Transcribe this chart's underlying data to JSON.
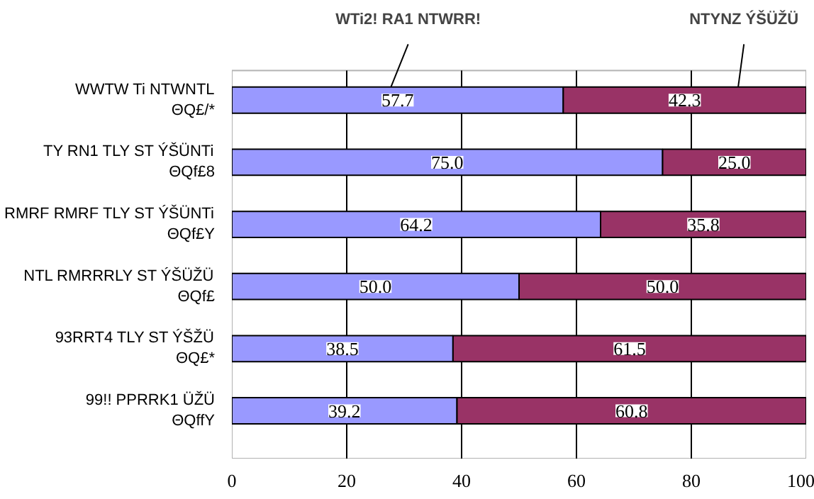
{
  "chart_data": {
    "type": "bar",
    "orientation": "horizontal",
    "stacked": true,
    "categories": [
      "WWTW Ti NTWNTL\nΘQ£/*",
      "TY RN1 TLY ST ÝŠÜNTi\nΘQf£8",
      "RMRF RMRF TLY ST ÝŠÜNTi\nΘQf£Y",
      "NTL RMRRRLY ST ÝŠÜŽÜ\nΘQf£",
      "93RRT4 TLY ST ÝŠŽÜ\nΘQ£*",
      "99!! PPRRK1 ÜŽÜ\nΘQffY"
    ],
    "series": [
      {
        "name": "WTi2! RA1 NTWRR!",
        "color": "#9999ff",
        "values": [
          57.7,
          75.0,
          64.2,
          50.0,
          38.5,
          39.2
        ],
        "value_labels": [
          "57.7",
          "75.0",
          "64.2",
          "50.0",
          "38.5",
          "39.2"
        ]
      },
      {
        "name": "NTYNZ ÝŠÜŽÜ",
        "color": "#993366",
        "values": [
          42.3,
          25.0,
          35.8,
          50.0,
          61.5,
          60.8
        ],
        "value_labels": [
          "42.3",
          "25.0",
          "35.8",
          "50.0",
          "61.5",
          "60.8"
        ]
      }
    ],
    "xlim": [
      0,
      100
    ],
    "xticks": [
      0,
      20,
      40,
      60,
      80,
      100
    ],
    "grid": "x"
  }
}
